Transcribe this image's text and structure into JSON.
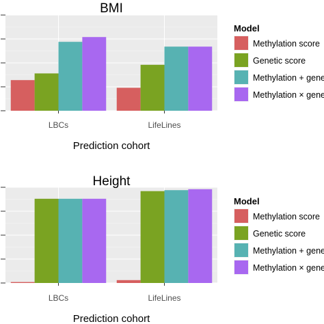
{
  "chart_data": [
    {
      "type": "bar",
      "title": "BMI",
      "xlabel": "Prediction cohort",
      "ylabel": "",
      "categories": [
        "LBCs",
        "LifeLines"
      ],
      "ylim": [
        0,
        1
      ],
      "series": [
        {
          "name": "Methylation score",
          "values": [
            0.32,
            0.24
          ]
        },
        {
          "name": "Genetic score",
          "values": [
            0.39,
            0.48
          ]
        },
        {
          "name": "Methylation + genetic score",
          "values": [
            0.72,
            0.67
          ]
        },
        {
          "name": "Methylation × genetic score",
          "values": [
            0.77,
            0.67
          ]
        }
      ],
      "legend": {
        "title": "Model",
        "position": "right"
      }
    },
    {
      "type": "bar",
      "title": "Height",
      "xlabel": "Prediction cohort",
      "ylabel": "",
      "categories": [
        "LBCs",
        "LifeLines"
      ],
      "ylim": [
        0,
        1
      ],
      "series": [
        {
          "name": "Methylation score",
          "values": [
            0.01,
            0.03
          ]
        },
        {
          "name": "Genetic score",
          "values": [
            0.88,
            0.96
          ]
        },
        {
          "name": "Methylation + genetic score",
          "values": [
            0.88,
            0.97
          ]
        },
        {
          "name": "Methylation × genetic score",
          "values": [
            0.88,
            0.98
          ]
        }
      ],
      "legend": {
        "title": "Model",
        "position": "right"
      }
    }
  ],
  "colors": [
    "#d65f5f",
    "#7aa322",
    "#57b2b2",
    "#a868f0"
  ],
  "panel_bg": "#ebebeb",
  "grid_color": "#ffffff"
}
